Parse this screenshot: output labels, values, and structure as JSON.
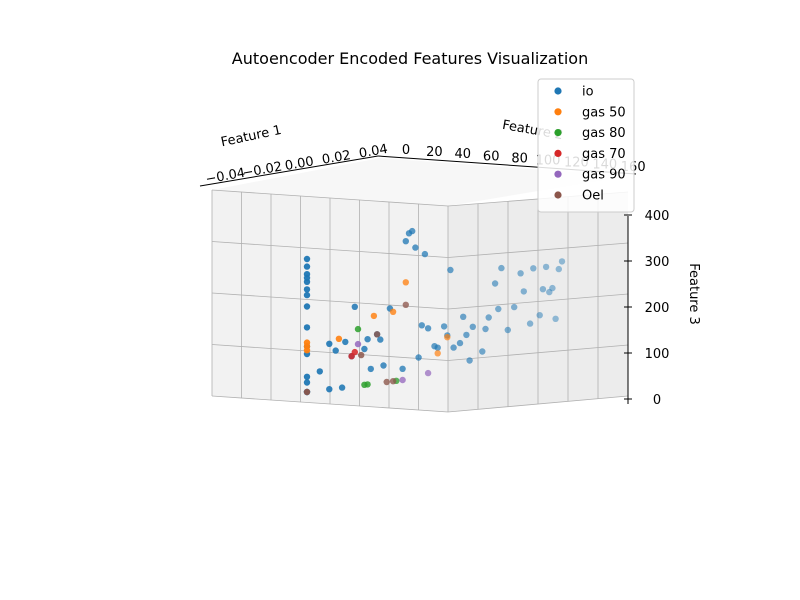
{
  "chart_data": {
    "type": "scatter",
    "projection": "3d",
    "title": "Autoencoder Encoded Features Visualization",
    "xlabel": "Feature 1",
    "ylabel": "Feature 2",
    "zlabel": "Feature 3",
    "xlim": [
      -0.05,
      0.05
    ],
    "ylim": [
      0,
      160
    ],
    "zlim": [
      0,
      400
    ],
    "xticks": [
      "−0.04",
      "−0.02",
      "0.00",
      "0.02",
      "0.04"
    ],
    "yticks": [
      "0",
      "20",
      "40",
      "60",
      "80",
      "100",
      "120",
      "140",
      "160"
    ],
    "zticks": [
      "0",
      "100",
      "200",
      "300",
      "400"
    ],
    "grid": true,
    "legend_position": "top-right",
    "series": [
      {
        "name": "io",
        "color": "#1f77b4",
        "points": [
          [
            0,
            0,
            350
          ],
          [
            0,
            0,
            330
          ],
          [
            0,
            0,
            310
          ],
          [
            0,
            0,
            300
          ],
          [
            0,
            0,
            290
          ],
          [
            0,
            0,
            270
          ],
          [
            0,
            0,
            255
          ],
          [
            0,
            0,
            225
          ],
          [
            0,
            0,
            170
          ],
          [
            0,
            0,
            120
          ],
          [
            0,
            0,
            100
          ],
          [
            0,
            0,
            40
          ],
          [
            0,
            0,
            25
          ],
          [
            0,
            0,
            0
          ],
          [
            0,
            0,
            0
          ],
          [
            0,
            8,
            50
          ],
          [
            0,
            14,
            120
          ],
          [
            0,
            14,
            0
          ],
          [
            0,
            18,
            100
          ],
          [
            0,
            22,
            0
          ],
          [
            0,
            28,
            80
          ],
          [
            0,
            24,
            120
          ],
          [
            0,
            36,
            95
          ],
          [
            0,
            30,
            210
          ],
          [
            0,
            40,
            40
          ],
          [
            0,
            44,
            130
          ],
          [
            0,
            46,
            115
          ],
          [
            0,
            48,
            45
          ],
          [
            0,
            52,
            195
          ],
          [
            0,
            38,
            120
          ],
          [
            0,
            60,
            30
          ],
          [
            0,
            62,
            370
          ],
          [
            0,
            64,
            390
          ],
          [
            0,
            66,
            395
          ],
          [
            0,
            68,
            350
          ],
          [
            0,
            70,
            55
          ],
          [
            0,
            72,
            140
          ],
          [
            0,
            74,
            330
          ],
          [
            0,
            76,
            130
          ],
          [
            0,
            80,
            80
          ],
          [
            0,
            82,
            75
          ],
          [
            0,
            86,
            130
          ],
          [
            0,
            88,
            105
          ],
          [
            0,
            90,
            280
          ],
          [
            0,
            92,
            70
          ],
          [
            0,
            96,
            80
          ],
          [
            0,
            98,
            150
          ],
          [
            0,
            100,
            100
          ],
          [
            0,
            102,
            30
          ],
          [
            0,
            104,
            120
          ],
          [
            0,
            110,
            50
          ],
          [
            0,
            112,
            110
          ],
          [
            0,
            114,
            140
          ],
          [
            0,
            118,
            230
          ],
          [
            0,
            120,
            160
          ],
          [
            0,
            122,
            270
          ],
          [
            0,
            126,
            100
          ],
          [
            0,
            130,
            160
          ],
          [
            0,
            134,
            250
          ],
          [
            0,
            136,
            200
          ],
          [
            0,
            140,
            110
          ],
          [
            0,
            142,
            260
          ],
          [
            0,
            146,
            130
          ],
          [
            0,
            148,
            200
          ],
          [
            0,
            150,
            260
          ],
          [
            0,
            152,
            190
          ],
          [
            0,
            154,
            200
          ],
          [
            0,
            156,
            115
          ],
          [
            0,
            158,
            250
          ],
          [
            0,
            160,
            270
          ]
        ]
      },
      {
        "name": "gas 50",
        "color": "#ff7f0e",
        "points": [
          [
            0,
            0,
            130
          ],
          [
            0,
            0,
            120
          ],
          [
            0,
            0,
            110
          ],
          [
            0,
            20,
            130
          ],
          [
            0,
            42,
            180
          ],
          [
            0,
            54,
            185
          ],
          [
            0,
            62,
            260
          ],
          [
            0,
            82,
            60
          ],
          [
            0,
            88,
            100
          ]
        ]
      },
      {
        "name": "gas 80",
        "color": "#2ca02c",
        "points": [
          [
            0,
            32,
            150
          ],
          [
            0,
            36,
            0
          ],
          [
            0,
            38,
            0
          ],
          [
            0,
            56,
            0
          ]
        ]
      },
      {
        "name": "gas 70",
        "color": "#d62728",
        "points": [
          [
            0,
            28,
            80
          ],
          [
            0,
            30,
            90
          ]
        ]
      },
      {
        "name": "gas 90",
        "color": "#9467bd",
        "points": [
          [
            0,
            32,
            110
          ],
          [
            0,
            60,
            0
          ],
          [
            0,
            76,
            10
          ]
        ]
      },
      {
        "name": "Oel",
        "color": "#8c564b",
        "points": [
          [
            0,
            0,
            0
          ],
          [
            0,
            34,
            80
          ],
          [
            0,
            44,
            130
          ],
          [
            0,
            50,
            0
          ],
          [
            0,
            54,
            0
          ],
          [
            0,
            62,
            200
          ]
        ]
      }
    ]
  }
}
